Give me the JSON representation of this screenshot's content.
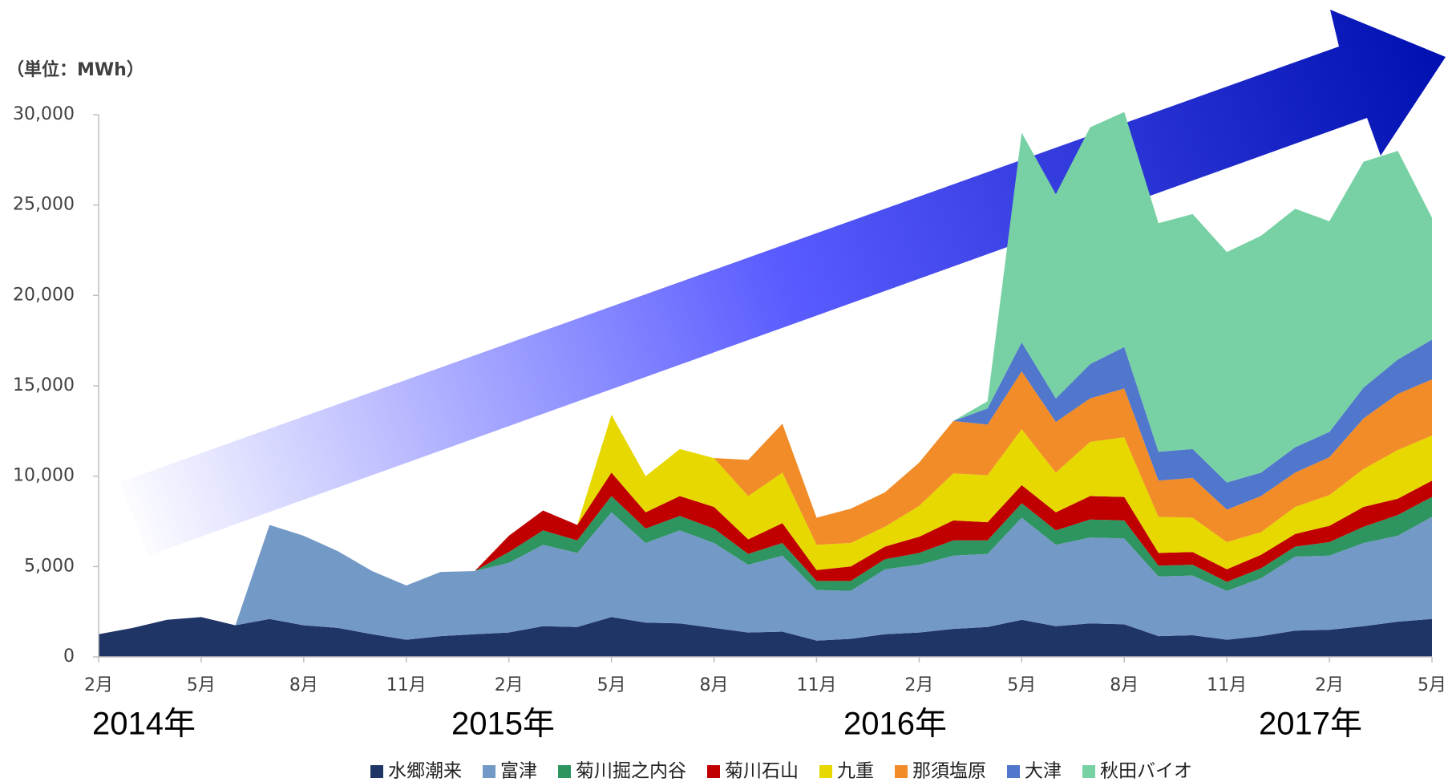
{
  "chart_data": {
    "type": "stacked_area",
    "unit_label": "（単位：MWh）",
    "annotations": [
      "2014年",
      "2015年",
      "2016年",
      "2017年"
    ],
    "categories": [
      "2月",
      null,
      null,
      "5月",
      null,
      null,
      "8月",
      null,
      null,
      "11月",
      null,
      null,
      "2月",
      null,
      null,
      "5月",
      null,
      null,
      "8月",
      null,
      null,
      "11月",
      null,
      null,
      "2月",
      null,
      null,
      "5月",
      null,
      null,
      "8月",
      null,
      null,
      "11月",
      null,
      null,
      "2月",
      null,
      null,
      "5月"
    ],
    "ylim": [
      0,
      30000
    ],
    "yticks": [
      0,
      {
        "value": 5000,
        "label": "5,000"
      },
      {
        "value": 10000,
        "label": "10,000"
      },
      {
        "value": 15000,
        "label": "15,000"
      },
      {
        "value": 20000,
        "label": "20,000"
      },
      {
        "value": 25000,
        "label": "25,000"
      },
      {
        "value": 30000,
        "label": "30,000"
      }
    ],
    "grid": false,
    "legend": "bottom",
    "series": [
      {
        "name": "水郷潮来",
        "color": "#1f3566",
        "values": [
          1250,
          1600,
          2050,
          2200,
          1750,
          2100,
          1750,
          1600,
          1250,
          950,
          1150,
          1250,
          1350,
          1700,
          1650,
          2200,
          1900,
          1850,
          1600,
          1350,
          1400,
          900,
          1000,
          1250,
          1350,
          1550,
          1650,
          2050,
          1700,
          1850,
          1800,
          1150,
          1200,
          950,
          1150,
          1450,
          1500,
          1700,
          1950,
          2100
        ]
      },
      {
        "name": "富津",
        "color": "#7399c6",
        "values": [
          0,
          0,
          0,
          0,
          0,
          5200,
          4950,
          4250,
          3500,
          3000,
          3550,
          3500,
          3850,
          4500,
          4100,
          5800,
          4400,
          5150,
          4700,
          3750,
          4200,
          2800,
          2650,
          3600,
          3750,
          4050,
          4050,
          5650,
          4500,
          4750,
          4750,
          3300,
          3300,
          2700,
          3200,
          4100,
          4100,
          4600,
          4750,
          5650
        ]
      },
      {
        "name": "菊川掘之内谷",
        "color": "#2e9460",
        "values": [
          0,
          0,
          0,
          0,
          0,
          0,
          0,
          0,
          0,
          0,
          0,
          0,
          600,
          800,
          700,
          900,
          800,
          800,
          800,
          600,
          700,
          500,
          550,
          550,
          650,
          850,
          750,
          800,
          800,
          1000,
          1000,
          600,
          600,
          500,
          550,
          550,
          750,
          900,
          1150,
          1100
        ]
      },
      {
        "name": "菊川石山",
        "color": "#c00000",
        "values": [
          0,
          0,
          0,
          0,
          0,
          0,
          0,
          0,
          0,
          0,
          0,
          0,
          900,
          1100,
          850,
          1300,
          900,
          1100,
          1200,
          800,
          1100,
          600,
          800,
          700,
          900,
          1100,
          1000,
          1000,
          1000,
          1300,
          1300,
          700,
          700,
          700,
          750,
          700,
          900,
          1100,
          900,
          900
        ]
      },
      {
        "name": "九重",
        "color": "#e6d800",
        "values": [
          0,
          0,
          0,
          0,
          0,
          0,
          0,
          0,
          0,
          0,
          0,
          0,
          0,
          0,
          0,
          3200,
          2000,
          2600,
          2700,
          2400,
          2800,
          1400,
          1300,
          1100,
          1700,
          2600,
          2600,
          3100,
          2200,
          3000,
          3300,
          2000,
          1900,
          1500,
          1250,
          1500,
          1700,
          2100,
          2700,
          2500
        ]
      },
      {
        "name": "那須塩原",
        "color": "#f28c28",
        "values": [
          0,
          0,
          0,
          0,
          0,
          0,
          0,
          0,
          0,
          0,
          0,
          0,
          0,
          0,
          0,
          0,
          0,
          0,
          0,
          2000,
          2700,
          1500,
          1900,
          1900,
          2400,
          2900,
          2800,
          3200,
          2800,
          2400,
          2700,
          2000,
          2200,
          1800,
          2000,
          1900,
          2100,
          2800,
          3100,
          3100
        ]
      },
      {
        "name": "大津",
        "color": "#5077cc",
        "values": [
          0,
          0,
          0,
          0,
          0,
          0,
          0,
          0,
          0,
          0,
          0,
          0,
          0,
          0,
          0,
          0,
          0,
          0,
          0,
          0,
          0,
          0,
          0,
          0,
          0,
          0,
          900,
          1600,
          1300,
          1900,
          2300,
          1600,
          1600,
          1500,
          1300,
          1400,
          1400,
          1700,
          1900,
          2200
        ]
      },
      {
        "name": "秋田バイオ",
        "color": "#77d1a4",
        "values": [
          0,
          0,
          0,
          0,
          0,
          0,
          0,
          0,
          0,
          0,
          0,
          0,
          0,
          0,
          0,
          0,
          0,
          0,
          0,
          0,
          0,
          0,
          0,
          0,
          0,
          0,
          400,
          11600,
          11300,
          13100,
          13000,
          12650,
          13000,
          12750,
          13100,
          13200,
          11650,
          12500,
          11550,
          6750
        ]
      }
    ]
  }
}
